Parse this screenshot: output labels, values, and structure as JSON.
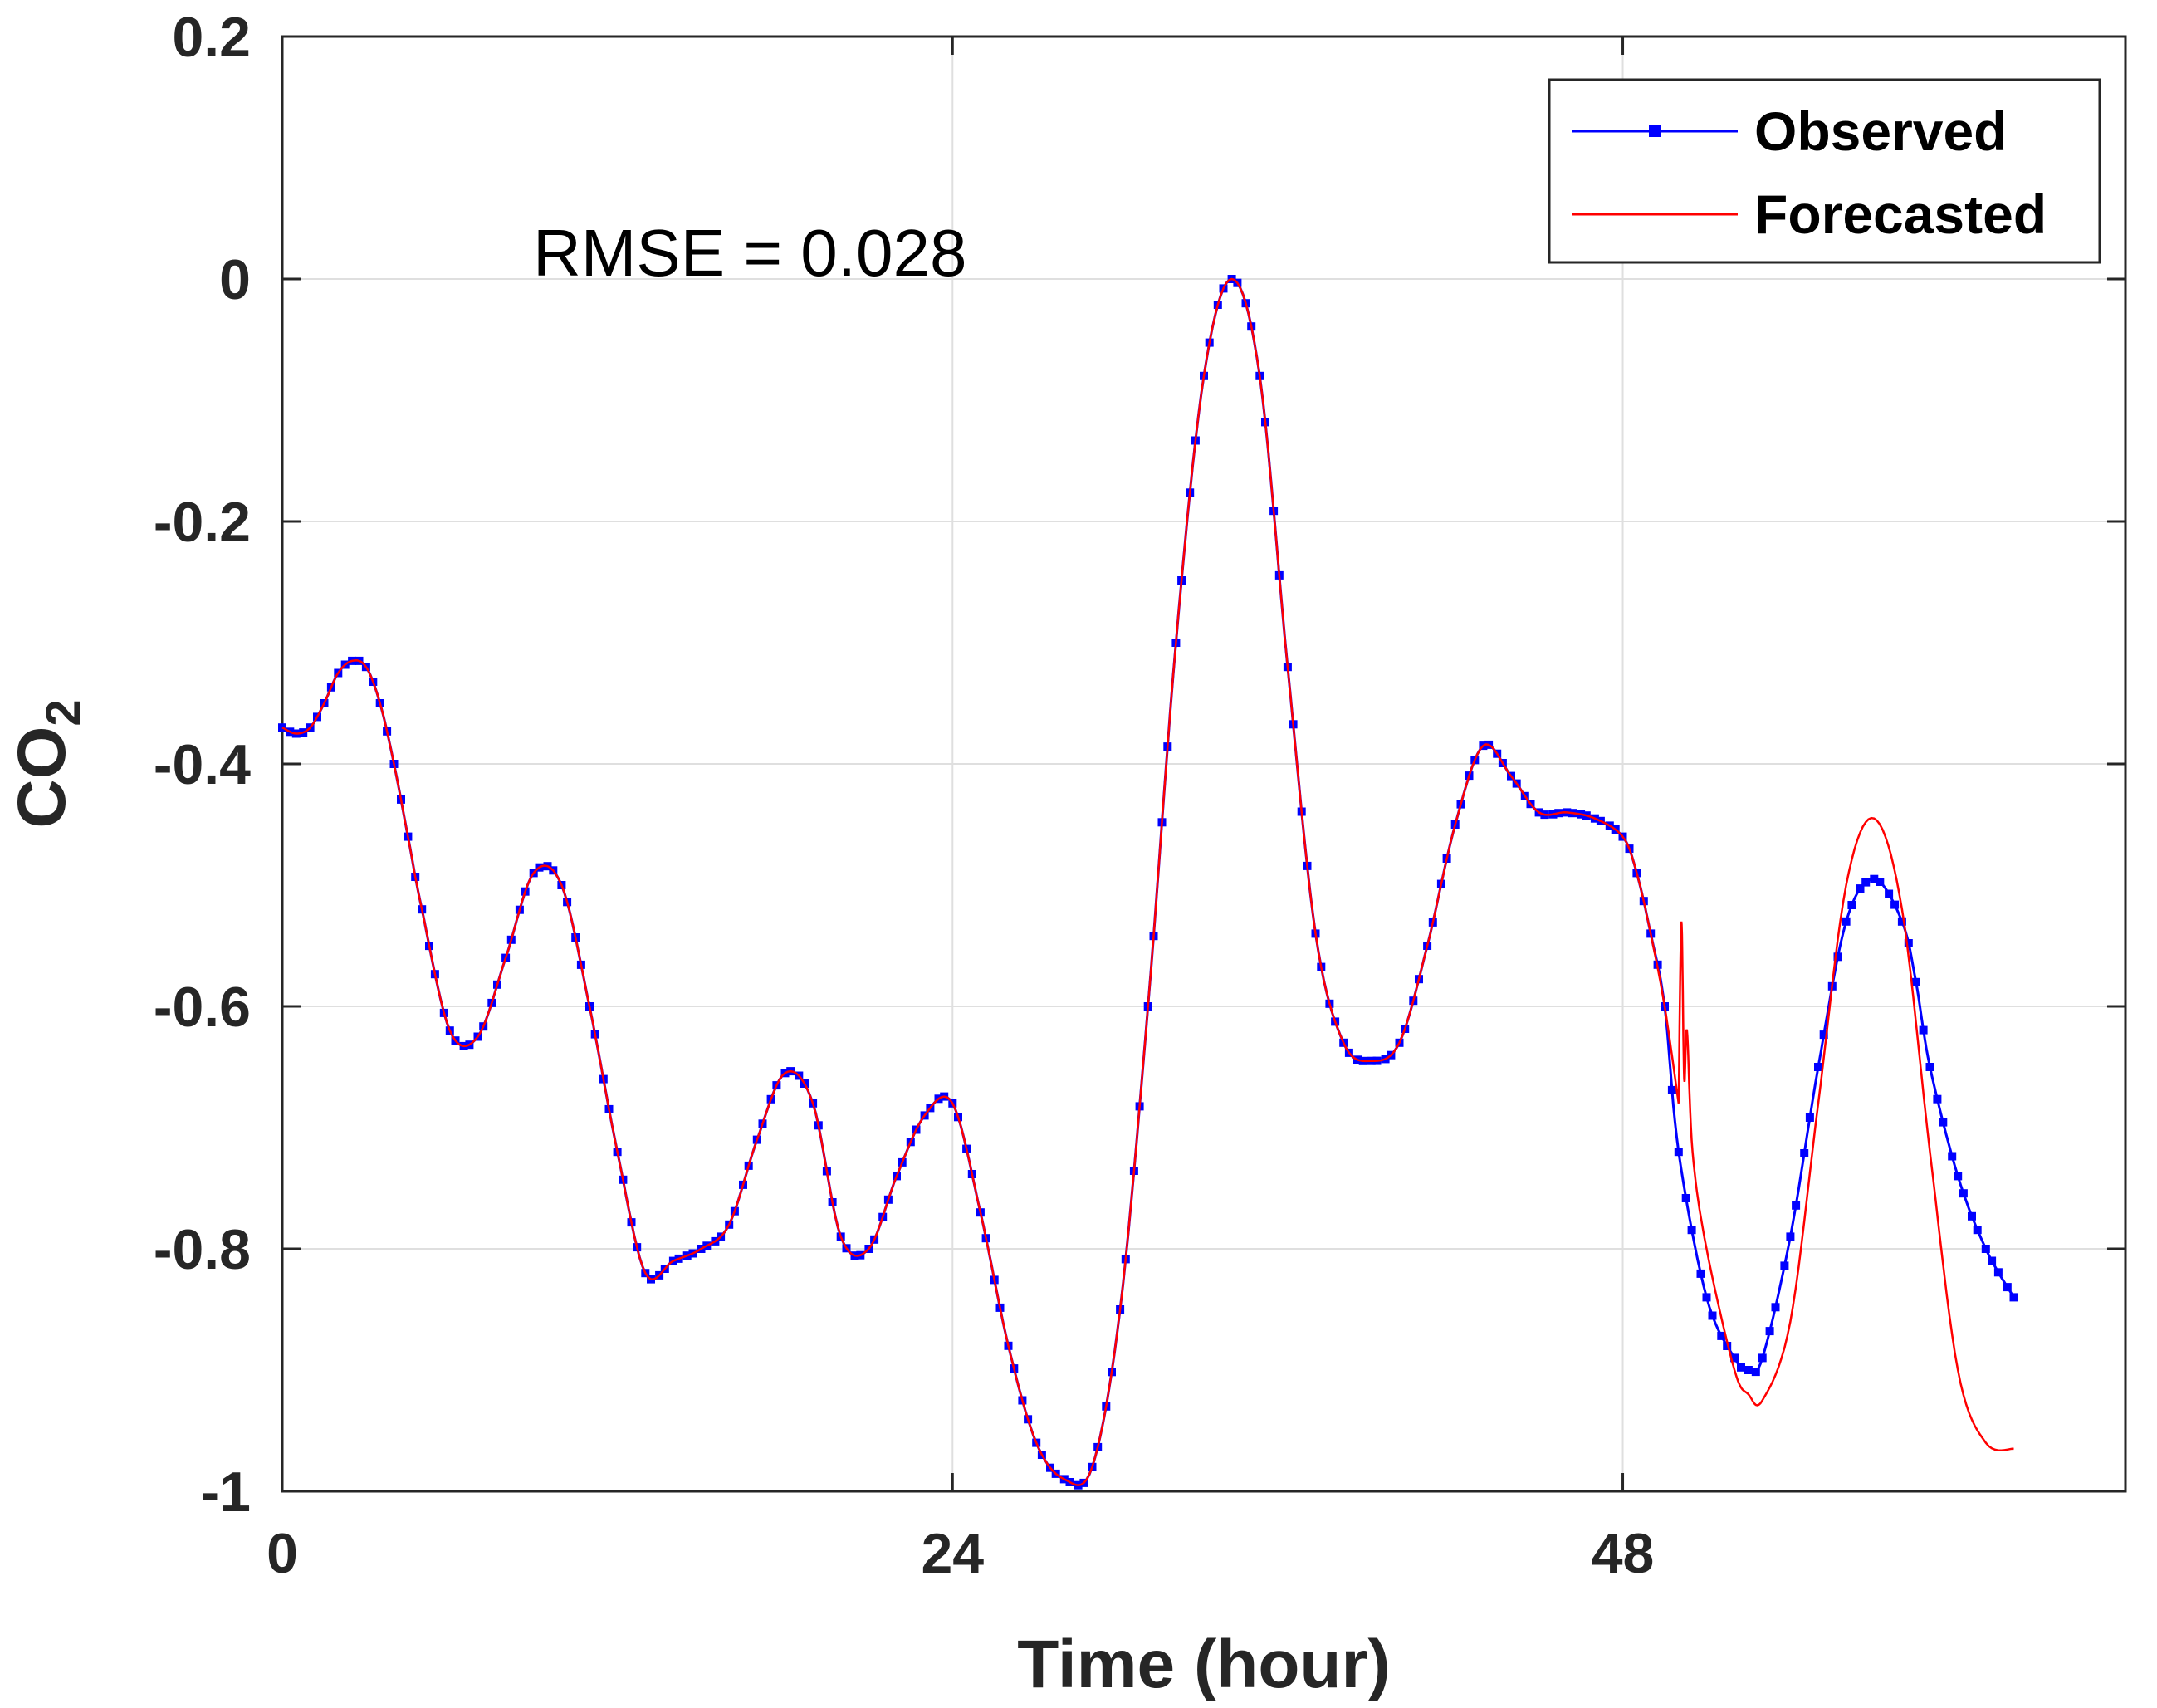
{
  "chart_data": {
    "type": "line",
    "title": "",
    "xlabel": "Time (hour)",
    "ylabel": "CO",
    "ylabel_subscript": "2",
    "xlim": [
      0,
      66
    ],
    "ylim": [
      -1,
      0.2
    ],
    "xticks": [
      0,
      24,
      48
    ],
    "xtick_labels": [
      "0",
      "24",
      "48"
    ],
    "yticks": [
      0.2,
      0,
      -0.2,
      -0.4,
      -0.6,
      -0.8,
      -1
    ],
    "ytick_labels": [
      "0.2",
      "0",
      "-0.2",
      "-0.4",
      "-0.6",
      "-0.8",
      "-1"
    ],
    "grid": true,
    "legend_position": "top-right",
    "annotation": "RMSE = 0.028",
    "series": [
      {
        "name": "Observed",
        "color": "#0000ff",
        "marker": "square",
        "x": [
          0,
          0.5,
          1,
          1.5,
          2,
          2.5,
          3,
          3.5,
          4,
          4.5,
          5,
          6,
          7,
          8,
          9,
          10,
          11,
          12,
          13,
          14,
          15,
          16,
          17,
          18,
          19,
          20,
          21,
          22,
          23,
          24,
          25,
          26,
          27,
          28,
          29,
          30,
          31,
          32,
          33,
          34,
          35,
          36,
          37,
          38,
          39,
          40,
          41,
          42,
          43,
          44,
          45,
          46,
          47,
          48,
          48.5,
          49,
          49.5,
          50,
          51,
          52,
          52.5,
          53,
          54,
          55,
          56,
          57,
          58,
          58.5,
          59,
          60,
          61,
          62
        ],
        "y": [
          -0.37,
          -0.375,
          -0.37,
          -0.35,
          -0.325,
          -0.315,
          -0.32,
          -0.35,
          -0.4,
          -0.46,
          -0.52,
          -0.62,
          -0.625,
          -0.56,
          -0.49,
          -0.5,
          -0.6,
          -0.72,
          -0.82,
          -0.81,
          -0.8,
          -0.78,
          -0.71,
          -0.655,
          -0.68,
          -0.79,
          -0.8,
          -0.74,
          -0.69,
          -0.68,
          -0.77,
          -0.88,
          -0.96,
          -0.99,
          -0.98,
          -0.85,
          -0.6,
          -0.3,
          -0.08,
          0.0,
          -0.08,
          -0.32,
          -0.54,
          -0.63,
          -0.645,
          -0.63,
          -0.55,
          -0.45,
          -0.385,
          -0.41,
          -0.44,
          -0.44,
          -0.445,
          -0.46,
          -0.49,
          -0.54,
          -0.6,
          -0.72,
          -0.84,
          -0.89,
          -0.9,
          -0.89,
          -0.79,
          -0.65,
          -0.53,
          -0.495,
          -0.53,
          -0.58,
          -0.65,
          -0.74,
          -0.8,
          -0.84
        ]
      },
      {
        "name": "Forecasted",
        "color": "#ff0000",
        "marker": "none",
        "x": [
          0,
          0.5,
          1,
          1.5,
          2,
          2.5,
          3,
          3.5,
          4,
          4.5,
          5,
          6,
          7,
          8,
          9,
          10,
          11,
          12,
          13,
          14,
          15,
          16,
          17,
          18,
          19,
          20,
          21,
          22,
          23,
          24,
          25,
          26,
          27,
          28,
          29,
          30,
          31,
          32,
          33,
          34,
          35,
          36,
          37,
          38,
          39,
          40,
          41,
          42,
          43,
          44,
          45,
          46,
          47,
          48,
          48.5,
          49,
          49.5,
          50,
          50.1,
          50.2,
          50.3,
          50.5,
          51,
          52,
          52.5,
          53,
          54,
          55,
          56,
          57,
          58,
          59,
          60,
          61,
          62
        ],
        "y": [
          -0.37,
          -0.375,
          -0.37,
          -0.35,
          -0.325,
          -0.315,
          -0.32,
          -0.35,
          -0.4,
          -0.46,
          -0.52,
          -0.62,
          -0.625,
          -0.56,
          -0.49,
          -0.5,
          -0.6,
          -0.72,
          -0.82,
          -0.81,
          -0.8,
          -0.78,
          -0.71,
          -0.655,
          -0.68,
          -0.79,
          -0.8,
          -0.74,
          -0.69,
          -0.68,
          -0.77,
          -0.88,
          -0.96,
          -0.99,
          -0.98,
          -0.85,
          -0.6,
          -0.3,
          -0.08,
          0.0,
          -0.08,
          -0.32,
          -0.54,
          -0.63,
          -0.645,
          -0.63,
          -0.55,
          -0.45,
          -0.385,
          -0.41,
          -0.44,
          -0.44,
          -0.445,
          -0.46,
          -0.49,
          -0.54,
          -0.6,
          -0.68,
          -0.53,
          -0.66,
          -0.62,
          -0.72,
          -0.8,
          -0.9,
          -0.92,
          -0.925,
          -0.86,
          -0.68,
          -0.5,
          -0.445,
          -0.52,
          -0.72,
          -0.9,
          -0.96,
          -0.965
        ]
      }
    ]
  }
}
